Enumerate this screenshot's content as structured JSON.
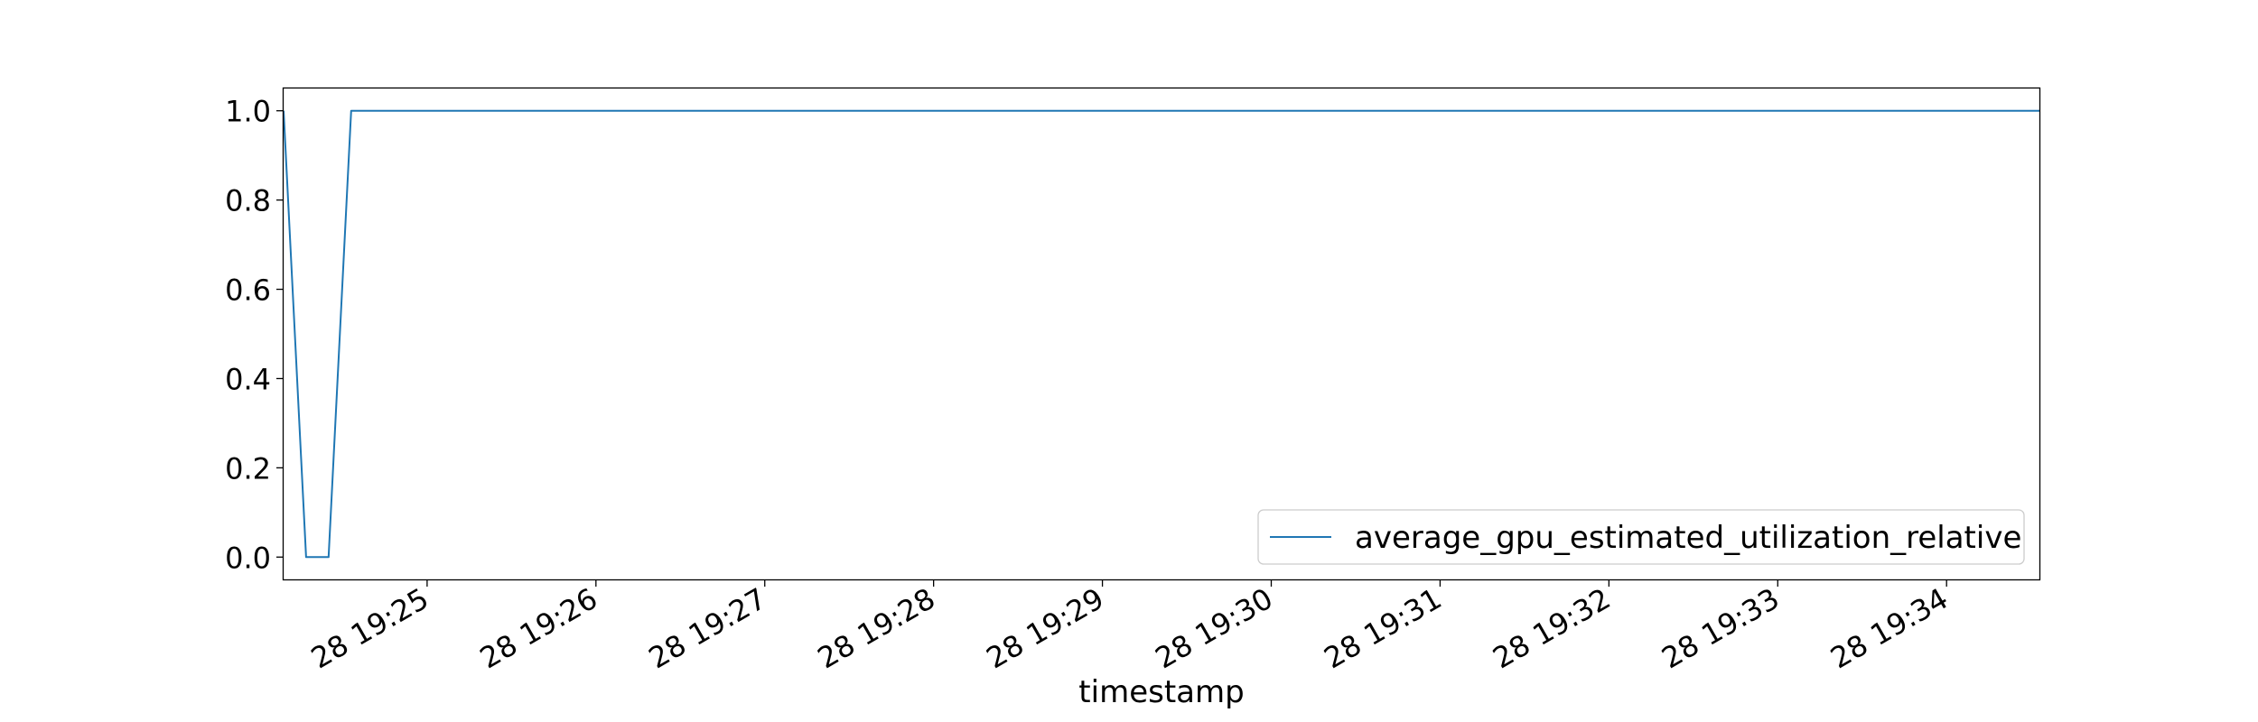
{
  "chart_data": {
    "type": "line",
    "title": "",
    "xlabel": "timestamp",
    "ylabel": "",
    "x_unit": "seconds since 19:24:00",
    "xlim": [
      9,
      633
    ],
    "ylim": [
      -0.05,
      1.05
    ],
    "yticks": [
      0.0,
      0.2,
      0.4,
      0.6,
      0.8,
      1.0
    ],
    "ytick_labels": [
      "0.0",
      "0.2",
      "0.4",
      "0.6",
      "0.8",
      "1.0"
    ],
    "xticks": [
      60,
      120,
      180,
      240,
      300,
      360,
      420,
      480,
      540,
      600
    ],
    "xtick_labels": [
      "28 19:25",
      "28 19:26",
      "28 19:27",
      "28 19:28",
      "28 19:29",
      "28 19:30",
      "28 19:31",
      "28 19:32",
      "28 19:33",
      "28 19:34"
    ],
    "grid": false,
    "legend_position": "lower-right",
    "series": [
      {
        "name": "average_gpu_estimated_utilization_relative",
        "color": "#1f77b4",
        "x": [
          9,
          17,
          25,
          33,
          633
        ],
        "y": [
          1.0,
          0.0,
          0.0,
          1.0,
          1.0
        ]
      }
    ]
  }
}
